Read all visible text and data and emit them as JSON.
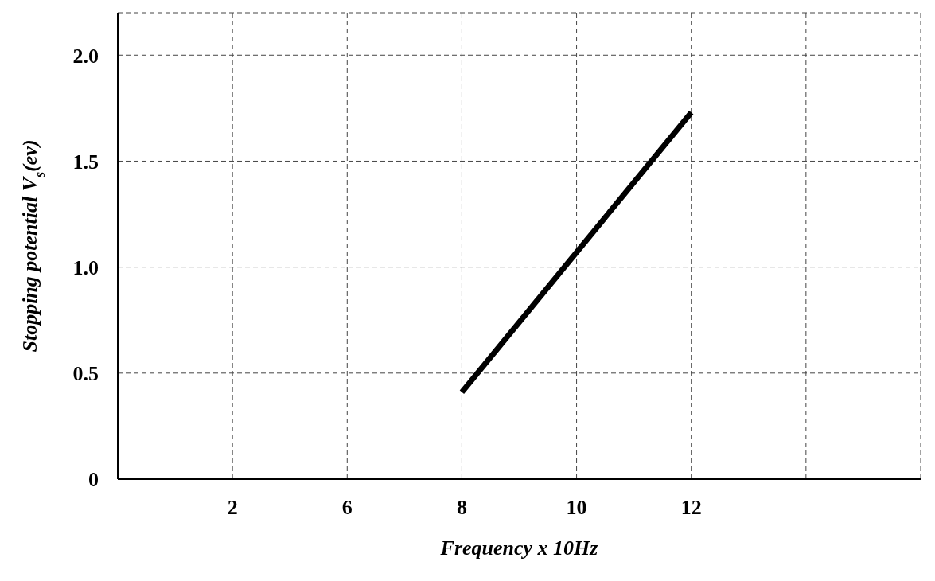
{
  "chart_data": {
    "type": "line",
    "xlabel": "Frequency x 10Hz",
    "ylabel": "Stopping potential V$_{s}$(ev)",
    "categories": [
      null,
      "2",
      "6",
      "8",
      "10",
      "12",
      null,
      null
    ],
    "series": [
      {
        "color": "#000000",
        "values": [
          null,
          null,
          null,
          0.41,
          1.07,
          1.73,
          null,
          null
        ]
      }
    ],
    "ylim": [
      0,
      2.2
    ],
    "yticks": [
      0,
      0.5,
      {
        "value": 1,
        "label": "1.0"
      },
      1.5,
      {
        "value": 2,
        "label": "2.0"
      }
    ],
    "grid": true,
    "marker": "none",
    "line_style": "solid"
  }
}
